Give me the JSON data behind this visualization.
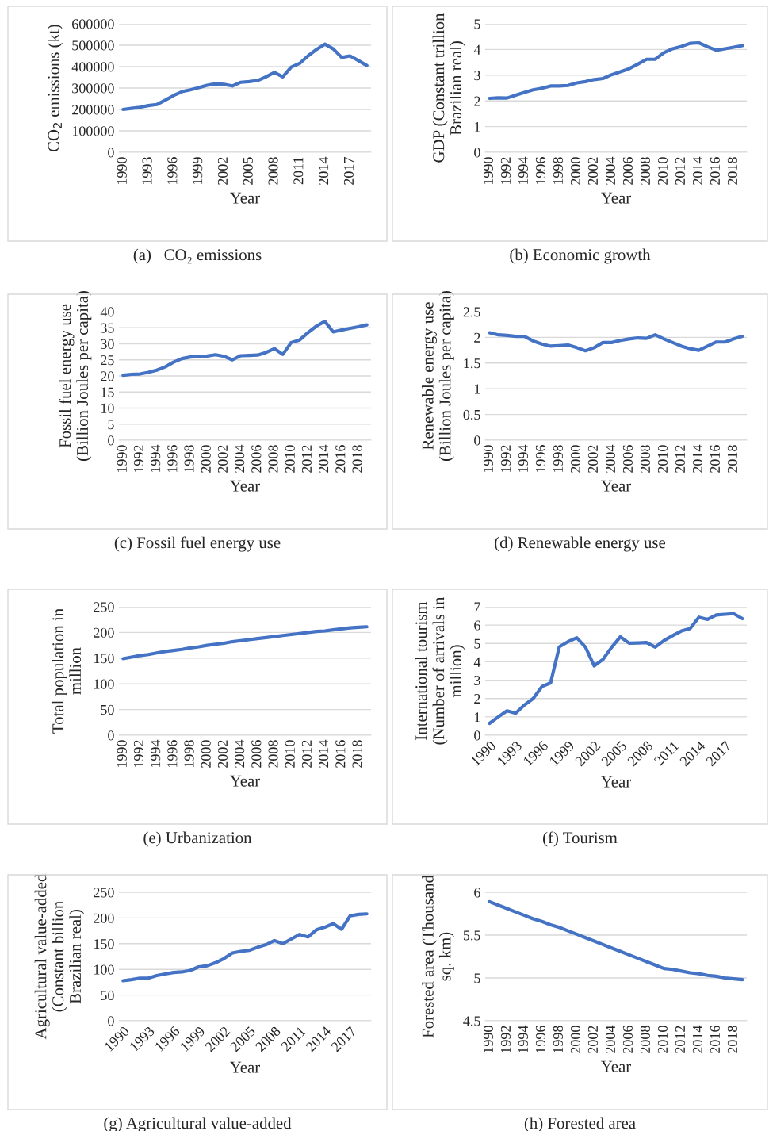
{
  "chart_data": [
    {
      "type": "line",
      "xlabel": "Year",
      "ylabel": "CO$_{2}$ emissions (kt)",
      "annotations": [
        "(a)   CO₂ emissions"
      ],
      "color": "#4472c4",
      "grid": "y",
      "ylim": [
        0,
        600000
      ],
      "yticks": [
        0,
        100000,
        200000,
        300000,
        400000,
        500000,
        600000
      ],
      "categories": [
        "1990",
        null,
        null,
        "1993",
        null,
        null,
        "1996",
        null,
        null,
        "1999",
        null,
        null,
        "2002",
        null,
        null,
        "2005",
        null,
        null,
        "2008",
        null,
        null,
        "2011",
        null,
        null,
        "2014",
        null,
        null,
        "2017",
        null,
        null
      ],
      "values": [
        200000,
        205000,
        210000,
        218000,
        223000,
        243000,
        265000,
        283000,
        292000,
        302000,
        313000,
        320000,
        317000,
        310000,
        327000,
        330000,
        335000,
        352000,
        373000,
        352000,
        398000,
        415000,
        450000,
        480000,
        505000,
        483000,
        443000,
        450000,
        428000,
        405000
      ]
    },
    {
      "type": "line",
      "xlabel": "Year",
      "ylabel": "GDP (Constant trillion\nBrazilian real)",
      "annotations": [
        "(b) Economic growth"
      ],
      "color": "#4472c4",
      "grid": "y",
      "ylim": [
        0,
        5
      ],
      "yticks": [
        0,
        1,
        2,
        3,
        4,
        5
      ],
      "categories": [
        "1990",
        null,
        "1992",
        null,
        "1994",
        null,
        "1996",
        null,
        "1998",
        null,
        "2000",
        null,
        "2002",
        null,
        "2004",
        null,
        "2006",
        null,
        "2008",
        null,
        "2010",
        null,
        "2012",
        null,
        "2014",
        null,
        "2016",
        null,
        "2018",
        null
      ],
      "values": [
        2.1,
        2.12,
        2.11,
        2.22,
        2.33,
        2.43,
        2.49,
        2.58,
        2.58,
        2.6,
        2.7,
        2.75,
        2.83,
        2.87,
        3.02,
        3.13,
        3.25,
        3.43,
        3.62,
        3.62,
        3.88,
        4.03,
        4.12,
        4.24,
        4.26,
        4.11,
        3.97,
        4.03,
        4.09,
        4.15
      ]
    },
    {
      "type": "line",
      "xlabel": "Year",
      "ylabel": "Fossil fuel energy use\n(Billion Joules per capita)",
      "annotations": [
        "(c) Fossil fuel energy use"
      ],
      "color": "#4472c4",
      "grid": "y",
      "ylim": [
        0,
        40
      ],
      "yticks": [
        0,
        5,
        10,
        15,
        20,
        25,
        30,
        35,
        40
      ],
      "categories": [
        "1990",
        null,
        "1992",
        null,
        "1994",
        null,
        "1996",
        null,
        "1998",
        null,
        "2000",
        null,
        "2002",
        null,
        "2004",
        null,
        "2006",
        null,
        "2008",
        null,
        "2010",
        null,
        "2012",
        null,
        "2014",
        null,
        "2016",
        null,
        "2018",
        null
      ],
      "values": [
        20.2,
        20.5,
        20.6,
        21.1,
        21.8,
        22.8,
        24.3,
        25.4,
        25.9,
        26.0,
        26.2,
        26.6,
        26.1,
        25.0,
        26.3,
        26.4,
        26.5,
        27.3,
        28.5,
        26.7,
        30.4,
        31.2,
        33.5,
        35.5,
        37.0,
        33.7,
        34.3,
        34.8,
        35.3,
        35.9
      ]
    },
    {
      "type": "line",
      "xlabel": "Year",
      "ylabel": "Renewable energy use\n(Billion Joules per capita)",
      "annotations": [
        "(d) Renewable energy use"
      ],
      "color": "#4472c4",
      "grid": "y",
      "ylim": [
        0,
        2.5
      ],
      "yticks": [
        0,
        0.5,
        1,
        1.5,
        2,
        2.5
      ],
      "categories": [
        "1990",
        null,
        "1992",
        null,
        "1994",
        null,
        "1996",
        null,
        "1998",
        null,
        "2000",
        null,
        "2002",
        null,
        "2004",
        null,
        "2006",
        null,
        "2008",
        null,
        "2010",
        null,
        "2012",
        null,
        "2014",
        null,
        "2016",
        null,
        "2018",
        null
      ],
      "values": [
        2.09,
        2.05,
        2.04,
        2.02,
        2.02,
        1.93,
        1.87,
        1.83,
        1.84,
        1.85,
        1.8,
        1.74,
        1.8,
        1.9,
        1.9,
        1.94,
        1.97,
        1.99,
        1.98,
        2.05,
        1.97,
        1.9,
        1.83,
        1.78,
        1.75,
        1.83,
        1.91,
        1.91,
        1.97,
        2.02
      ]
    },
    {
      "type": "line",
      "xlabel": "Year",
      "ylabel": "Total population in\nmillion",
      "annotations": [
        "(e) Urbanization"
      ],
      "color": "#4472c4",
      "grid": "y",
      "ylim": [
        0,
        250
      ],
      "yticks": [
        0,
        50,
        100,
        150,
        200,
        250
      ],
      "categories": [
        "1990",
        null,
        "1992",
        null,
        "1994",
        null,
        "1996",
        null,
        "1998",
        null,
        "2000",
        null,
        "2002",
        null,
        "2004",
        null,
        "2006",
        null,
        "2008",
        null,
        "2010",
        null,
        "2012",
        null,
        "2014",
        null,
        "2016",
        null,
        "2018",
        null
      ],
      "values": [
        149,
        152,
        155,
        157,
        160,
        163,
        165,
        167,
        170,
        172,
        175,
        177,
        179,
        182,
        184,
        186,
        188,
        190,
        192,
        194,
        196,
        198,
        200,
        202,
        203,
        205,
        207,
        209,
        210,
        211
      ]
    },
    {
      "type": "line",
      "xlabel": "Year",
      "ylabel": "International tourism\n(Number of arrivals in\nmillion)",
      "annotations": [
        "(f) Tourism"
      ],
      "color": "#4472c4",
      "grid": "y",
      "ylim": [
        0,
        7
      ],
      "yticks": [
        0,
        1,
        2,
        3,
        4,
        5,
        6,
        7
      ],
      "categories": [
        "1990",
        null,
        null,
        "1993",
        null,
        null,
        "1996",
        null,
        null,
        "1999",
        null,
        null,
        "2002",
        null,
        null,
        "2005",
        null,
        null,
        "2008",
        null,
        null,
        "2011",
        null,
        null,
        "2014",
        null,
        null,
        "2017",
        null,
        null
      ],
      "values": [
        0.65,
        1.0,
        1.33,
        1.2,
        1.65,
        2.0,
        2.65,
        2.85,
        4.82,
        5.1,
        5.31,
        4.8,
        3.78,
        4.13,
        4.79,
        5.36,
        5.02,
        5.03,
        5.05,
        4.8,
        5.16,
        5.43,
        5.68,
        5.81,
        6.43,
        6.31,
        6.55,
        6.59,
        6.62,
        6.35
      ]
    },
    {
      "type": "line",
      "xlabel": "Year",
      "ylabel": "Agricultural value-added\n(Constant billion\nBrazilian real)",
      "annotations": [
        "(g) Agricultural value-added"
      ],
      "color": "#4472c4",
      "grid": "y",
      "ylim": [
        0,
        250
      ],
      "yticks": [
        0,
        50,
        100,
        150,
        200,
        250
      ],
      "categories": [
        "1990",
        null,
        null,
        "1993",
        null,
        null,
        "1996",
        null,
        null,
        "1999",
        null,
        null,
        "2002",
        null,
        null,
        "2005",
        null,
        null,
        "2008",
        null,
        null,
        "2011",
        null,
        null,
        "2014",
        null,
        null,
        "2017",
        null,
        null
      ],
      "values": [
        78,
        80,
        83,
        83,
        88,
        91,
        94,
        95,
        98,
        105,
        107,
        113,
        121,
        132,
        135,
        137,
        143,
        148,
        156,
        150,
        159,
        168,
        163,
        177,
        182,
        189,
        178,
        204,
        207,
        208
      ]
    },
    {
      "type": "line",
      "xlabel": "Year",
      "ylabel": "Forested area (Thousand\nsq. km)",
      "annotations": [
        "(h) Forested area"
      ],
      "color": "#4472c4",
      "grid": "y",
      "ylim": [
        4.5,
        6
      ],
      "yticks": [
        4.5,
        5,
        5.5,
        6
      ],
      "categories": [
        "1990",
        null,
        "1992",
        null,
        "1994",
        null,
        "1996",
        null,
        "1998",
        null,
        "2000",
        null,
        "2002",
        null,
        "2004",
        null,
        "2006",
        null,
        "2008",
        null,
        "2010",
        null,
        "2012",
        null,
        "2014",
        null,
        "2016",
        null,
        "2018",
        null
      ],
      "values": [
        5.89,
        5.85,
        5.81,
        5.77,
        5.73,
        5.69,
        5.66,
        5.62,
        5.59,
        5.55,
        5.51,
        5.47,
        5.43,
        5.39,
        5.35,
        5.31,
        5.27,
        5.23,
        5.19,
        5.15,
        5.11,
        5.1,
        5.08,
        5.06,
        5.05,
        5.03,
        5.02,
        5.0,
        4.99,
        4.98
      ]
    }
  ]
}
